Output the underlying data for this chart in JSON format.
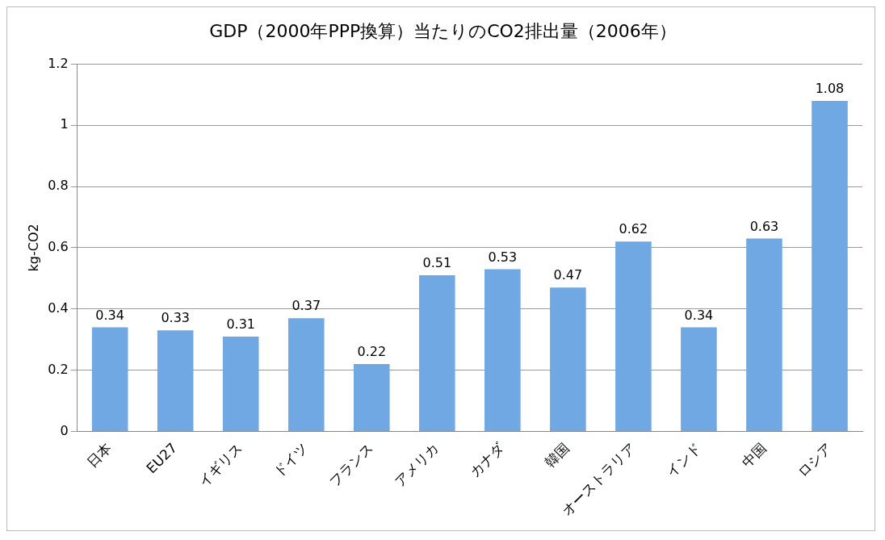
{
  "chart_data": {
    "type": "bar",
    "title": "GDP（2000年PPP換算）当たりのCO2排出量（2006年）",
    "ylabel": "kg-CO2",
    "categories": [
      "日本",
      "EU27",
      "イギリス",
      "ドイツ",
      "フランス",
      "アメリカ",
      "カナダ",
      "韓国",
      "オーストラリア",
      "インド",
      "中国",
      "ロシア"
    ],
    "values": [
      0.34,
      0.33,
      0.31,
      0.37,
      0.22,
      0.51,
      0.53,
      0.47,
      0.62,
      0.34,
      0.63,
      1.08
    ],
    "color": "#6fa8e2",
    "ylim": [
      0,
      1.2
    ],
    "yticks": [
      0,
      0.2,
      0.4,
      0.6,
      0.8,
      1,
      1.2
    ],
    "grid": "y",
    "legend": false,
    "data_labels": true
  }
}
